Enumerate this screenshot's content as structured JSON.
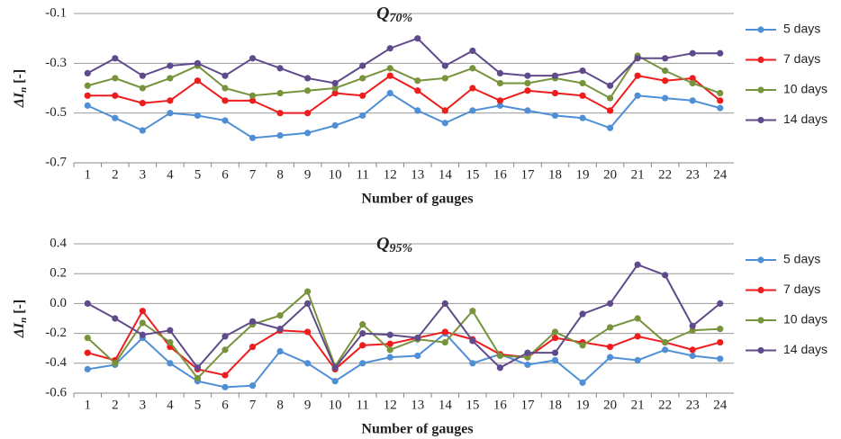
{
  "chart_data": [
    {
      "type": "line",
      "title": "Q",
      "title_subscript": "70%",
      "ylabel": "ΔI",
      "ylabel_subscript": "n",
      "ylabel_unit": "[-]",
      "xlabel": "Number of gauges",
      "categories": [
        "1",
        "2",
        "3",
        "4",
        "5",
        "6",
        "7",
        "8",
        "9",
        "10",
        "11",
        "12",
        "13",
        "14",
        "15",
        "16",
        "17",
        "18",
        "19",
        "20",
        "21",
        "22",
        "23",
        "24"
      ],
      "ylim": [
        -0.7,
        -0.1
      ],
      "yticks": [
        -0.1,
        -0.3,
        -0.5,
        -0.7
      ],
      "grid": true,
      "series": [
        {
          "name": "5 days",
          "color": "#4f8fd6",
          "values": [
            -0.47,
            -0.52,
            -0.57,
            -0.5,
            -0.51,
            -0.53,
            -0.6,
            -0.59,
            -0.58,
            -0.55,
            -0.51,
            -0.42,
            -0.49,
            -0.54,
            -0.49,
            -0.47,
            -0.49,
            -0.51,
            -0.52,
            -0.56,
            -0.43,
            -0.44,
            -0.45,
            -0.48
          ]
        },
        {
          "name": "7 days",
          "color": "#ee1c1c",
          "values": [
            -0.43,
            -0.43,
            -0.46,
            -0.45,
            -0.37,
            -0.45,
            -0.45,
            -0.5,
            -0.5,
            -0.42,
            -0.43,
            -0.35,
            -0.41,
            -0.49,
            -0.4,
            -0.45,
            -0.41,
            -0.42,
            -0.43,
            -0.49,
            -0.35,
            -0.37,
            -0.36,
            -0.45
          ]
        },
        {
          "name": "10 days",
          "color": "#77933c",
          "values": [
            -0.39,
            -0.36,
            -0.4,
            -0.36,
            -0.31,
            -0.4,
            -0.43,
            -0.42,
            -0.41,
            -0.4,
            -0.36,
            -0.32,
            -0.37,
            -0.36,
            -0.32,
            -0.38,
            -0.38,
            -0.36,
            -0.38,
            -0.44,
            -0.27,
            -0.33,
            -0.38,
            -0.42
          ]
        },
        {
          "name": "14 days",
          "color": "#5f4b8b",
          "values": [
            -0.34,
            -0.28,
            -0.35,
            -0.31,
            -0.3,
            -0.35,
            -0.28,
            -0.32,
            -0.36,
            -0.38,
            -0.31,
            -0.24,
            -0.2,
            -0.31,
            -0.25,
            -0.34,
            -0.35,
            -0.35,
            -0.33,
            -0.39,
            -0.28,
            -0.28,
            -0.26,
            -0.26
          ]
        }
      ]
    },
    {
      "type": "line",
      "title": "Q",
      "title_subscript": "95%",
      "ylabel": "ΔI",
      "ylabel_subscript": "n",
      "ylabel_unit": "[-]",
      "xlabel": "Number of gauges",
      "categories": [
        "1",
        "2",
        "3",
        "4",
        "5",
        "6",
        "7",
        "8",
        "9",
        "10",
        "11",
        "12",
        "13",
        "14",
        "15",
        "16",
        "17",
        "18",
        "19",
        "20",
        "21",
        "22",
        "23",
        "24"
      ],
      "ylim": [
        -0.6,
        0.4
      ],
      "yticks": [
        0.4,
        0.2,
        {
          "value": 0,
          "label": "0.0"
        },
        -0.2,
        -0.4,
        -0.6
      ],
      "grid": true,
      "series": [
        {
          "name": "5 days",
          "color": "#4f8fd6",
          "values": [
            -0.44,
            -0.41,
            -0.23,
            -0.4,
            -0.52,
            -0.56,
            -0.55,
            -0.32,
            -0.4,
            -0.52,
            -0.4,
            -0.36,
            -0.35,
            -0.2,
            -0.4,
            -0.34,
            -0.41,
            -0.38,
            -0.53,
            -0.36,
            -0.38,
            -0.31,
            -0.35,
            -0.37
          ]
        },
        {
          "name": "7 days",
          "color": "#ee1c1c",
          "values": [
            -0.33,
            -0.38,
            -0.05,
            -0.29,
            -0.44,
            -0.48,
            -0.29,
            -0.18,
            -0.19,
            -0.44,
            -0.28,
            -0.27,
            -0.23,
            -0.19,
            -0.24,
            -0.34,
            -0.36,
            -0.23,
            -0.26,
            -0.29,
            -0.22,
            -0.26,
            -0.31,
            -0.26
          ]
        },
        {
          "name": "10 days",
          "color": "#77933c",
          "values": [
            -0.23,
            -0.4,
            -0.13,
            -0.26,
            -0.5,
            -0.31,
            -0.14,
            -0.08,
            0.08,
            -0.42,
            -0.14,
            -0.31,
            -0.24,
            -0.26,
            -0.05,
            -0.35,
            -0.36,
            -0.19,
            -0.28,
            -0.16,
            -0.1,
            -0.26,
            -0.18,
            -0.17
          ]
        },
        {
          "name": "14 days",
          "color": "#5f4b8b",
          "values": [
            0,
            -0.1,
            -0.21,
            -0.18,
            -0.43,
            -0.22,
            -0.12,
            -0.17,
            0,
            -0.43,
            -0.2,
            -0.21,
            -0.23,
            0,
            -0.25,
            -0.43,
            -0.33,
            -0.33,
            -0.07,
            0,
            0.26,
            0.19,
            -0.15,
            0
          ]
        }
      ]
    }
  ]
}
